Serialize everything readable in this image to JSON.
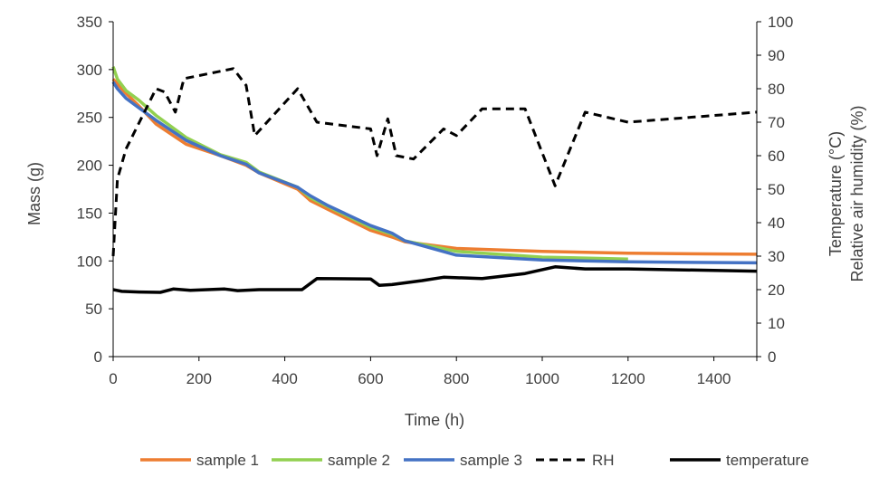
{
  "chart_data": {
    "type": "line",
    "title": "",
    "xlabel": "Time (h)",
    "ylabel": "Mass (g)",
    "y2label_line1": "Temperature (°C)",
    "y2label_line2": "Relative air humidity (%)",
    "xlim": [
      0,
      1500
    ],
    "ylim": [
      0,
      350
    ],
    "y2lim": [
      0,
      100
    ],
    "xticks": [
      "0",
      "200",
      "400",
      "600",
      "800",
      "1000",
      "1200",
      "1400"
    ],
    "yticks": [
      "0",
      "50",
      "100",
      "150",
      "200",
      "250",
      "300",
      "350"
    ],
    "y2ticks": [
      "0",
      "10",
      "20",
      "30",
      "40",
      "50",
      "60",
      "70",
      "80",
      "90",
      "100"
    ],
    "grid": false,
    "legend_position": "bottom",
    "series": [
      {
        "name": "sample 1",
        "axis": "left",
        "color": "#ED7D31",
        "dash": "solid",
        "points": [
          [
            0,
            290
          ],
          [
            10,
            285
          ],
          [
            30,
            275
          ],
          [
            60,
            262
          ],
          [
            100,
            243
          ],
          [
            170,
            222
          ],
          [
            250,
            210
          ],
          [
            310,
            200
          ],
          [
            340,
            192
          ],
          [
            430,
            175
          ],
          [
            460,
            163
          ],
          [
            500,
            154
          ],
          [
            600,
            132
          ],
          [
            650,
            125
          ],
          [
            680,
            120
          ],
          [
            800,
            113
          ],
          [
            1000,
            110
          ],
          [
            1200,
            108
          ],
          [
            1500,
            107
          ]
        ]
      },
      {
        "name": "sample 2",
        "axis": "left",
        "color": "#92D050",
        "dash": "solid",
        "points": [
          [
            0,
            303
          ],
          [
            10,
            290
          ],
          [
            30,
            278
          ],
          [
            60,
            268
          ],
          [
            100,
            252
          ],
          [
            170,
            229
          ],
          [
            250,
            211
          ],
          [
            310,
            203
          ],
          [
            340,
            193
          ],
          [
            430,
            177
          ],
          [
            460,
            166
          ],
          [
            500,
            157
          ],
          [
            600,
            135
          ],
          [
            650,
            128
          ],
          [
            680,
            121
          ],
          [
            800,
            110
          ],
          [
            1000,
            104
          ],
          [
            1200,
            102
          ]
        ]
      },
      {
        "name": "sample 3",
        "axis": "left",
        "color": "#4472C4",
        "dash": "solid",
        "points": [
          [
            0,
            287
          ],
          [
            10,
            280
          ],
          [
            30,
            270
          ],
          [
            60,
            260
          ],
          [
            100,
            247
          ],
          [
            170,
            226
          ],
          [
            250,
            210
          ],
          [
            310,
            201
          ],
          [
            340,
            192
          ],
          [
            430,
            177
          ],
          [
            460,
            168
          ],
          [
            500,
            158
          ],
          [
            600,
            137
          ],
          [
            650,
            129
          ],
          [
            680,
            121
          ],
          [
            800,
            106
          ],
          [
            1000,
            101
          ],
          [
            1200,
            99
          ],
          [
            1500,
            98
          ]
        ]
      },
      {
        "name": "RH",
        "axis": "right",
        "color": "#000000",
        "dash": "dashed",
        "points": [
          [
            0,
            30
          ],
          [
            10,
            53
          ],
          [
            30,
            62
          ],
          [
            100,
            80
          ],
          [
            120,
            79
          ],
          [
            145,
            73
          ],
          [
            165,
            83
          ],
          [
            280,
            86
          ],
          [
            310,
            81
          ],
          [
            330,
            66
          ],
          [
            430,
            80
          ],
          [
            475,
            70
          ],
          [
            600,
            68
          ],
          [
            615,
            60
          ],
          [
            640,
            71
          ],
          [
            660,
            60
          ],
          [
            700,
            59
          ],
          [
            770,
            68
          ],
          [
            800,
            66
          ],
          [
            860,
            74
          ],
          [
            960,
            74
          ],
          [
            1030,
            51
          ],
          [
            1100,
            73
          ],
          [
            1200,
            70
          ],
          [
            1500,
            73
          ]
        ]
      },
      {
        "name": "temperature",
        "axis": "right",
        "color": "#000000",
        "dash": "solid",
        "points": [
          [
            0,
            20
          ],
          [
            20,
            19.5
          ],
          [
            60,
            19.3
          ],
          [
            110,
            19.2
          ],
          [
            140,
            20.2
          ],
          [
            180,
            19.8
          ],
          [
            260,
            20.2
          ],
          [
            290,
            19.7
          ],
          [
            340,
            20
          ],
          [
            440,
            20
          ],
          [
            475,
            23.3
          ],
          [
            600,
            23.2
          ],
          [
            620,
            21.3
          ],
          [
            650,
            21.5
          ],
          [
            720,
            22.7
          ],
          [
            770,
            23.7
          ],
          [
            860,
            23.3
          ],
          [
            960,
            24.8
          ],
          [
            1030,
            26.8
          ],
          [
            1100,
            26.2
          ],
          [
            1200,
            26.2
          ],
          [
            1500,
            25.5
          ]
        ]
      }
    ]
  }
}
